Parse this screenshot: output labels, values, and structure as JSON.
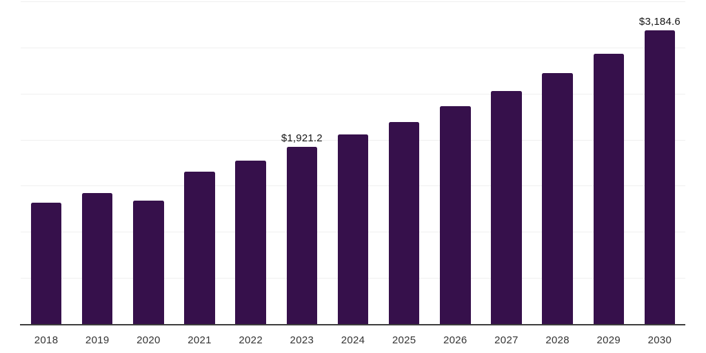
{
  "chart_data": {
    "type": "bar",
    "title": "",
    "xlabel": "",
    "ylabel": "",
    "categories": [
      "2018",
      "2019",
      "2020",
      "2021",
      "2022",
      "2023",
      "2024",
      "2025",
      "2026",
      "2027",
      "2028",
      "2029",
      "2030"
    ],
    "values": [
      1320,
      1420,
      1340,
      1650,
      1770,
      1921.2,
      2060,
      2195,
      2360,
      2530,
      2725,
      2935,
      3184.6
    ],
    "ylim": [
      0,
      3500
    ],
    "gridline_interval": 500,
    "grid": "horizontal",
    "legend_position": "none",
    "y_axis_ticks_visible": false,
    "data_labels": [
      {
        "category": "2023",
        "text": "$1,921.2"
      },
      {
        "category": "2030",
        "text": "$3,184.6"
      }
    ],
    "colors": {
      "bar": "#36104B",
      "gridline": "#efefef",
      "axis_line": "#3d3d3d",
      "tick_label": "#333333",
      "data_label": "#141414"
    }
  }
}
